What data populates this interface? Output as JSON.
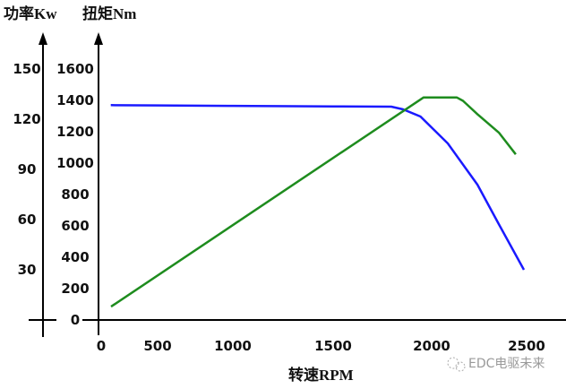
{
  "chart_data": {
    "type": "line",
    "title": "",
    "xlabel": "转速RPM",
    "ylabel_left": "功率Kw",
    "ylabel_right": "扭矩Nm",
    "xlim": [
      0,
      2500
    ],
    "x_ticks": [
      0,
      500,
      1000,
      1500,
      2000,
      2500
    ],
    "power_ticks": [
      30,
      60,
      90,
      120,
      150
    ],
    "torque_ticks": [
      0,
      200,
      400,
      600,
      800,
      1000,
      1200,
      1400,
      1600
    ],
    "power_ylim": [
      0,
      150
    ],
    "torque_ylim": [
      0,
      1600
    ],
    "grid": false,
    "series": [
      {
        "axis": "torque",
        "color": "#1a1aff",
        "x": [
          85,
          500,
          1000,
          1500,
          1795,
          1855,
          1943,
          2085,
          2241,
          2354,
          2486
        ],
        "y": [
          1370,
          1368,
          1365,
          1362,
          1360,
          1343,
          1297,
          1126,
          863,
          611,
          320
        ]
      },
      {
        "axis": "power",
        "color": "#1e8c1e",
        "x": [
          87,
          1959,
          2132,
          2165,
          2241,
          2354,
          2443
        ],
        "y": [
          8,
          133,
          133,
          131,
          123,
          112,
          99
        ]
      }
    ]
  },
  "watermark": "EDC电驱未来"
}
